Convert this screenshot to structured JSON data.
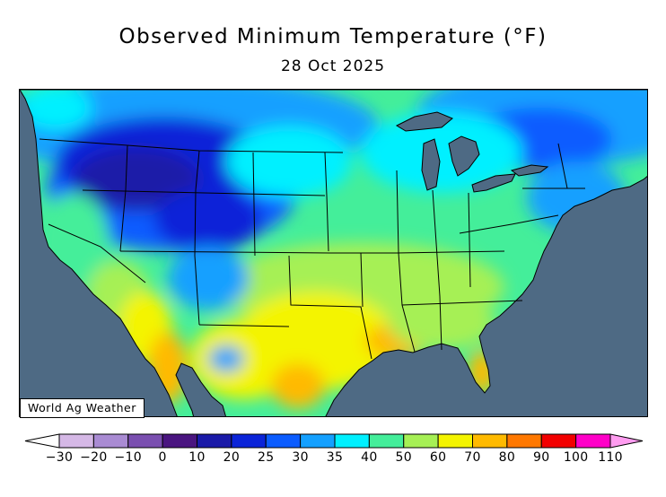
{
  "title": "Observed Minimum Temperature (°F)",
  "date": "28 Oct 2025",
  "credit": "World Ag Weather",
  "legend": {
    "labels": [
      "−30",
      "−20",
      "−10",
      "0",
      "10",
      "20",
      "25",
      "30",
      "35",
      "40",
      "50",
      "60",
      "70",
      "80",
      "90",
      "100",
      "110"
    ],
    "bins": [
      {
        "color": "#ffffff"
      },
      {
        "color": "#d5b8e6"
      },
      {
        "color": "#a98bd3"
      },
      {
        "color": "#7a4fb0"
      },
      {
        "color": "#4a1580"
      },
      {
        "color": "#1a1aa8"
      },
      {
        "color": "#0b24d8"
      },
      {
        "color": "#0b5cff"
      },
      {
        "color": "#14a0ff"
      },
      {
        "color": "#00f0ff"
      },
      {
        "color": "#44ee9a"
      },
      {
        "color": "#a6f055"
      },
      {
        "color": "#f4f400"
      },
      {
        "color": "#ffba00"
      },
      {
        "color": "#ff7800"
      },
      {
        "color": "#f20000"
      },
      {
        "color": "#ff00c8"
      },
      {
        "color": "#ff9cf0"
      }
    ]
  },
  "colors": {
    "ocean": "#4e6a84",
    "border": "#000000"
  }
}
